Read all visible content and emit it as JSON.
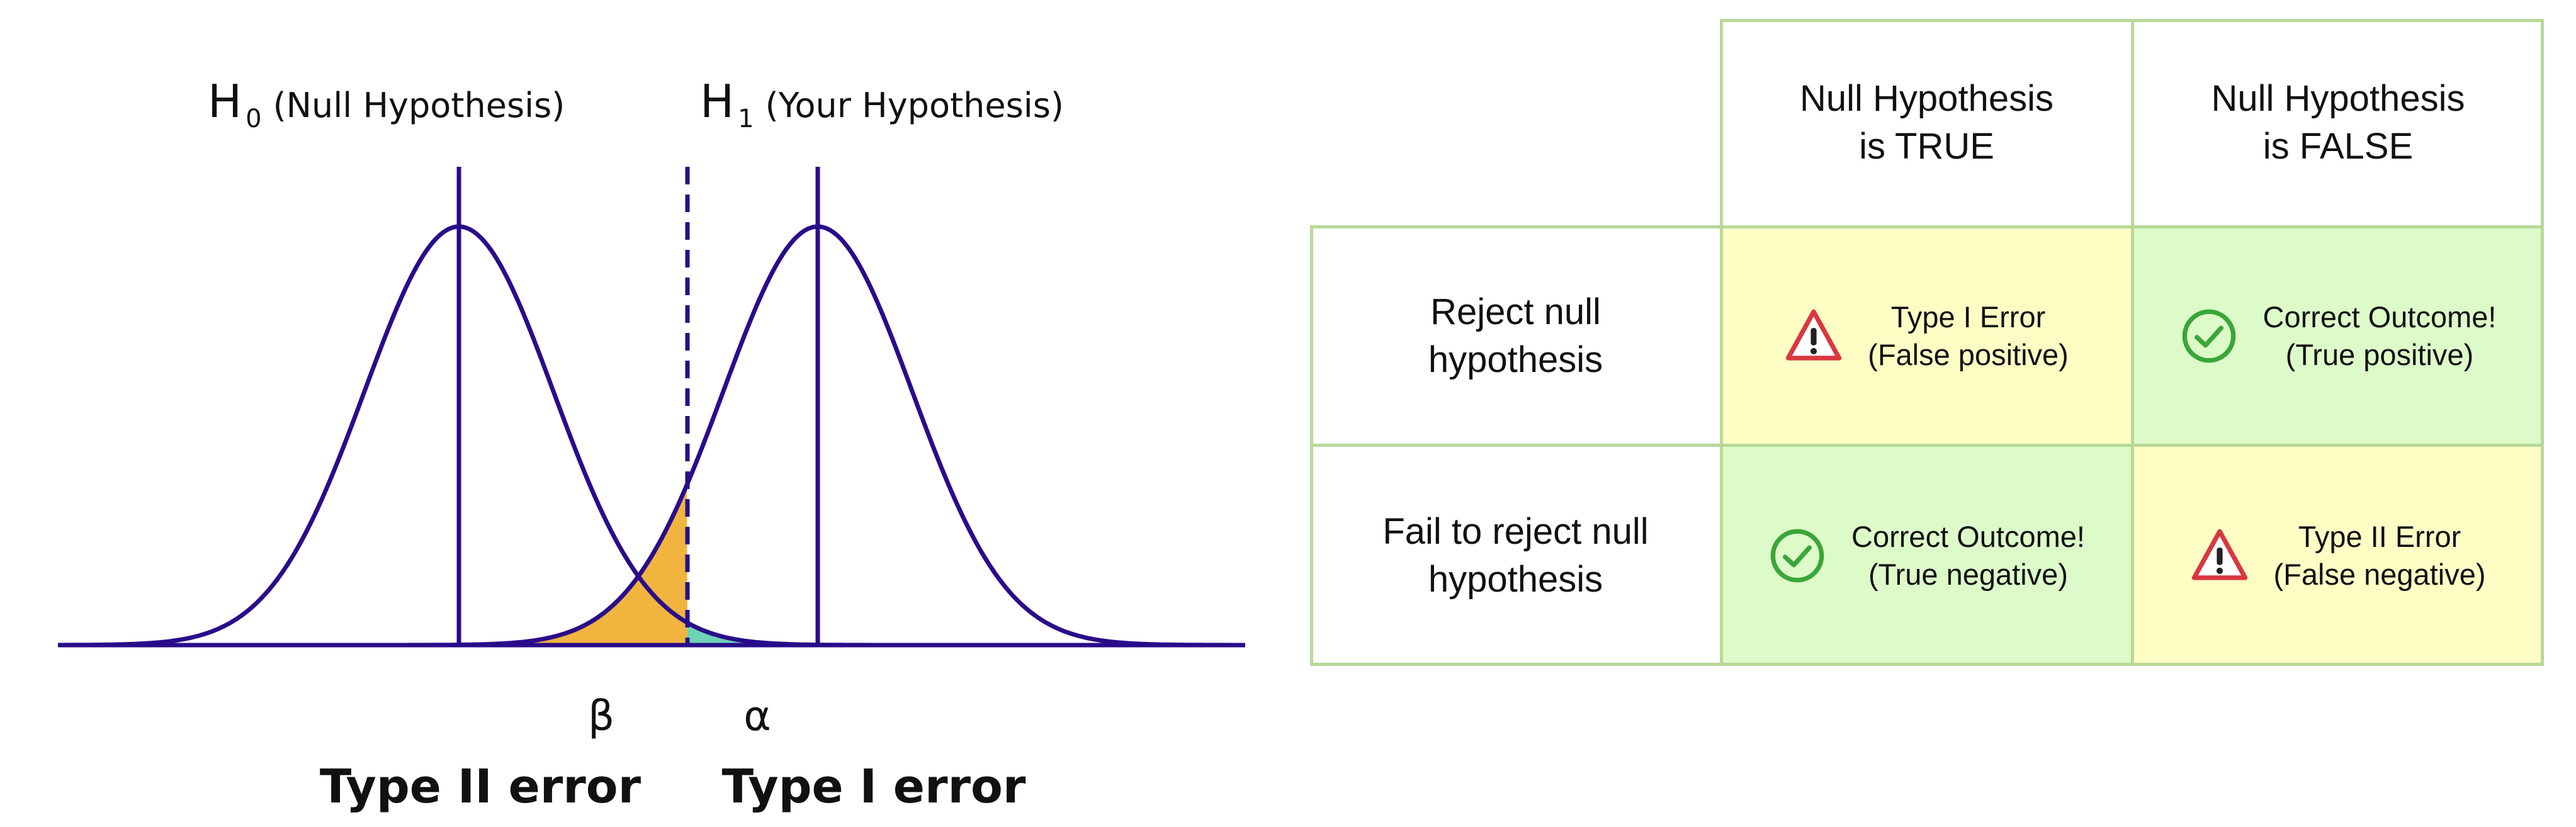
{
  "diagram": {
    "h0": {
      "symbol": "H",
      "subscript": "0",
      "description": "(Null Hypothesis)"
    },
    "h1": {
      "symbol": "H",
      "subscript": "1",
      "description": "(Your Hypothesis)"
    },
    "beta": {
      "symbol": "β",
      "label": "Type II error"
    },
    "alpha": {
      "symbol": "α",
      "label": "Type I error"
    },
    "colors": {
      "curve": "#2a0c8a",
      "beta_fill": "#f0b43f",
      "alpha_fill": "#6fd3b8"
    }
  },
  "table": {
    "columns": [
      "Null Hypothesis\nis TRUE",
      "Null Hypothesis\nis FALSE"
    ],
    "rows": [
      {
        "label": "Reject null\nhypothesis",
        "cells": [
          {
            "line1": "Type I Error",
            "line2": "(False positive)",
            "icon": "warning-icon",
            "color": "#fdfdc4"
          },
          {
            "line1": "Correct Outcome!",
            "line2": "(True positive)",
            "icon": "check-circle-icon",
            "color": "#ddfbc9"
          }
        ]
      },
      {
        "label": "Fail to reject null\nhypothesis",
        "cells": [
          {
            "line1": "Correct Outcome!",
            "line2": "(True negative)",
            "icon": "check-circle-icon",
            "color": "#ddfbc9"
          },
          {
            "line1": "Type II Error",
            "line2": "(False negative)",
            "icon": "warning-icon",
            "color": "#fdfdc4"
          }
        ]
      }
    ],
    "colors": {
      "border": "#b9d898",
      "warning": "#d9373f",
      "check": "#3aa63a"
    }
  }
}
